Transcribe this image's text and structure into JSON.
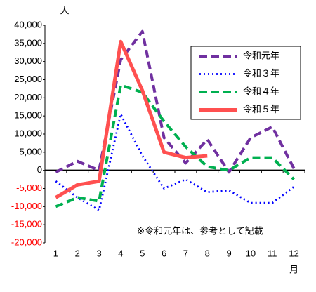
{
  "chart_data": {
    "type": "line",
    "y_unit": "人",
    "x_unit": "月",
    "annotation": "※令和元年は、参考として記載",
    "categories": [
      "1",
      "2",
      "3",
      "4",
      "5",
      "6",
      "7",
      "8",
      "9",
      "10",
      "11",
      "12"
    ],
    "series": [
      {
        "name": "令和元年",
        "color": "#7030a0",
        "style": "dashed",
        "values": [
          -500,
          2500,
          0,
          30500,
          38300,
          9000,
          2000,
          8500,
          -500,
          9000,
          12000,
          500
        ]
      },
      {
        "name": "令和３年",
        "color": "#0000ff",
        "style": "dotted",
        "values": [
          -3000,
          -7500,
          -11000,
          15500,
          4000,
          -5000,
          -2500,
          -6000,
          -5500,
          -9000,
          -9000,
          -4500
        ]
      },
      {
        "name": "令和４年",
        "color": "#00b050",
        "style": "dashed",
        "values": [
          -10000,
          -7500,
          -8500,
          23500,
          21500,
          13500,
          6500,
          1000,
          0,
          3500,
          3500,
          -2500
        ]
      },
      {
        "name": "令和５年",
        "color": "#ff5050",
        "style": "solid",
        "values": [
          -7500,
          -4000,
          -3000,
          35500,
          22000,
          5000,
          3500,
          4000,
          null,
          null,
          null,
          null
        ]
      }
    ],
    "ylim": [
      -20000,
      40000
    ],
    "yticks": [
      {
        "value": 40000,
        "label": "40,000"
      },
      {
        "value": 35000,
        "label": "35,000"
      },
      {
        "value": 30000,
        "label": "30,000"
      },
      {
        "value": 25000,
        "label": "25,000"
      },
      {
        "value": 20000,
        "label": "20,000"
      },
      {
        "value": 15000,
        "label": "15,000"
      },
      {
        "value": 10000,
        "label": "10,000"
      },
      {
        "value": 5000,
        "label": "5,000"
      },
      0,
      {
        "value": -5000,
        "label": "-5,000"
      },
      {
        "value": -10000,
        "label": "-10,000"
      },
      {
        "value": -15000,
        "label": "-15,000"
      },
      {
        "value": -20000,
        "label": "-20,000"
      }
    ],
    "negative_tick_color": "#ff0000",
    "grid": false,
    "legend": "upper right"
  }
}
